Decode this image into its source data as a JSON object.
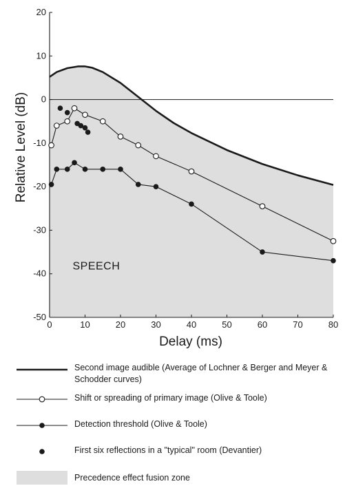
{
  "chart_data": {
    "type": "line",
    "xlabel": "Delay (ms)",
    "ylabel": "Relative Level (dB)",
    "xlim": [
      0,
      80
    ],
    "ylim": [
      -50,
      20
    ],
    "xticks": [
      0,
      10,
      20,
      30,
      40,
      50,
      60,
      70,
      80
    ],
    "yticks": [
      20,
      10,
      0,
      -10,
      -20,
      -30,
      -40,
      -50
    ],
    "annotation": "SPEECH",
    "grid": false,
    "reference_line_y": 0,
    "series": [
      {
        "name": "Second image audible (Average of Lochner & Berger and Meyer & Schodder curves)",
        "style": "thick-line",
        "x": [
          0,
          2,
          5,
          8,
          10,
          12,
          15,
          20,
          25,
          30,
          35,
          40,
          50,
          60,
          70,
          80
        ],
        "y": [
          5.2,
          6.3,
          7.2,
          7.6,
          7.6,
          7.3,
          6.3,
          3.8,
          0.6,
          -2.6,
          -5.4,
          -7.7,
          -11.6,
          -14.8,
          -17.4,
          -19.6
        ]
      },
      {
        "name": "Shift or spreading of primary image (Olive & Toole)",
        "style": "open-circles",
        "x": [
          0.5,
          2,
          5,
          7,
          10,
          15,
          20,
          25,
          30,
          40,
          60,
          80
        ],
        "y": [
          -10.5,
          -6,
          -5,
          -2,
          -3.5,
          -5,
          -8.5,
          -10.5,
          -13,
          -16.5,
          -24.5,
          -32.5
        ]
      },
      {
        "name": "Detection threshold (Olive & Toole)",
        "style": "filled-circles",
        "x": [
          0.5,
          2,
          5,
          7,
          10,
          15,
          20,
          25,
          30,
          40,
          60,
          80
        ],
        "y": [
          -19.5,
          -16,
          -16,
          -14.5,
          -16,
          -16,
          -16,
          -19.5,
          -20,
          -24,
          -35,
          -37
        ]
      },
      {
        "name": "First six reflections in a \"typical\" room (Devantier)",
        "style": "dots",
        "x": [
          3,
          5,
          7.8,
          8.8,
          10,
          10.8
        ],
        "y": [
          -2,
          -3,
          -5.5,
          -6,
          -6.5,
          -7.5
        ]
      }
    ],
    "fill": {
      "name": "Precedence effect fusion zone",
      "color": "#dedede",
      "description": "area under the second-image-audible curve"
    }
  },
  "colors": {
    "line": "#1a1a1a",
    "fill": "#dedede",
    "background": "#ffffff"
  }
}
